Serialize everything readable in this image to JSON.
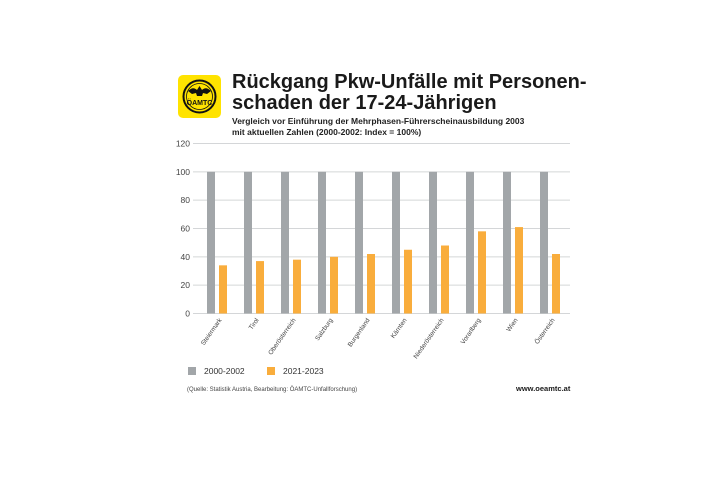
{
  "header": {
    "logo_text": "ÖAMTC",
    "title_line1": "Rückgang Pkw-Unfälle mit Personen-",
    "title_line2": "schaden der 17-24-Jährigen",
    "subtitle_line1": "Vergleich vor Einführung der Mehrphasen-Führerscheinausbildung 2003",
    "subtitle_line2": "mit aktuellen Zahlen (2000-2002: Index = 100%)"
  },
  "chart_data": {
    "type": "bar",
    "title": "Rückgang Pkw-Unfälle mit Personenschaden der 17-24-Jährigen",
    "xlabel": "",
    "ylabel": "",
    "ylim": [
      0,
      120
    ],
    "yticks": [
      0,
      20,
      40,
      60,
      80,
      100,
      120
    ],
    "grid": true,
    "legend_position": "bottom-left",
    "categories": [
      "Steiermark",
      "Tirol",
      "Oberösterreich",
      "Salzburg",
      "Burgenland",
      "Kärnten",
      "Niederösterreich",
      "Vorarlberg",
      "Wien",
      "Österreich"
    ],
    "series": [
      {
        "name": "2000-2002",
        "color": "#a2a6a9",
        "values": [
          100,
          100,
          100,
          100,
          100,
          100,
          100,
          100,
          100,
          100
        ]
      },
      {
        "name": "2021-2023",
        "color": "#f9ad3c",
        "values": [
          34,
          37,
          38,
          40,
          42,
          45,
          48,
          58,
          61,
          42
        ]
      }
    ]
  },
  "footer": {
    "source": "(Quelle: Statistik Austria, Bearbeitung: ÖAMTC-Unfallforschung)",
    "url": "www.oeamtc.at"
  },
  "colors": {
    "logo_bg": "#ffe300",
    "grid": "#d4d6d8",
    "tick_text": "#444444"
  }
}
